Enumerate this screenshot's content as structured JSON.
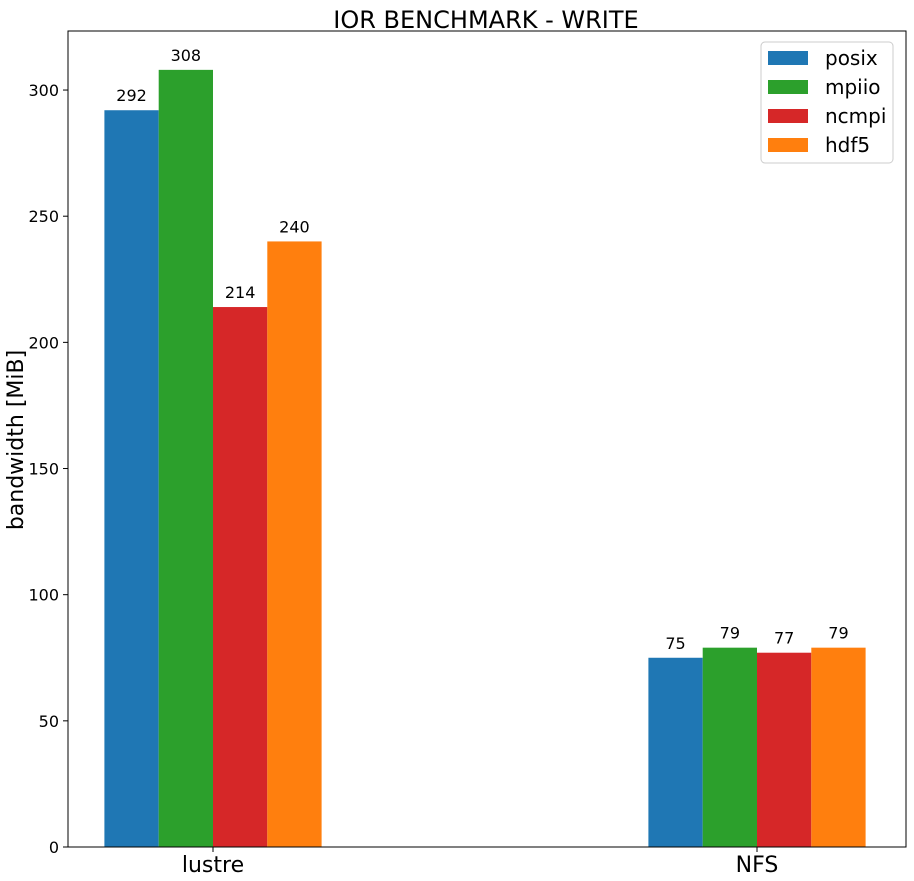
{
  "chart_data": {
    "type": "bar",
    "title": "IOR BENCHMARK - WRITE",
    "xlabel": "",
    "ylabel": "bandwidth [MiB]",
    "categories": [
      "lustre",
      "NFS"
    ],
    "series": [
      {
        "name": "posix",
        "color": "#1f77b4",
        "values": [
          292,
          75
        ],
        "labels": [
          "292",
          "75"
        ]
      },
      {
        "name": "mpiio",
        "color": "#2ca02c",
        "values": [
          308,
          79
        ],
        "labels": [
          "308",
          "79"
        ]
      },
      {
        "name": "ncmpi",
        "color": "#d62728",
        "values": [
          214,
          77
        ],
        "labels": [
          "214",
          "77"
        ]
      },
      {
        "name": "hdf5",
        "color": "#ff7f0e",
        "values": [
          240,
          79
        ],
        "labels": [
          "240",
          "79"
        ]
      }
    ],
    "ylim": [
      0,
      323.4
    ],
    "yticks": [
      "0",
      "50",
      "100",
      "150",
      "200",
      "250",
      "300"
    ],
    "grid": false,
    "legend_position": "top-right"
  }
}
